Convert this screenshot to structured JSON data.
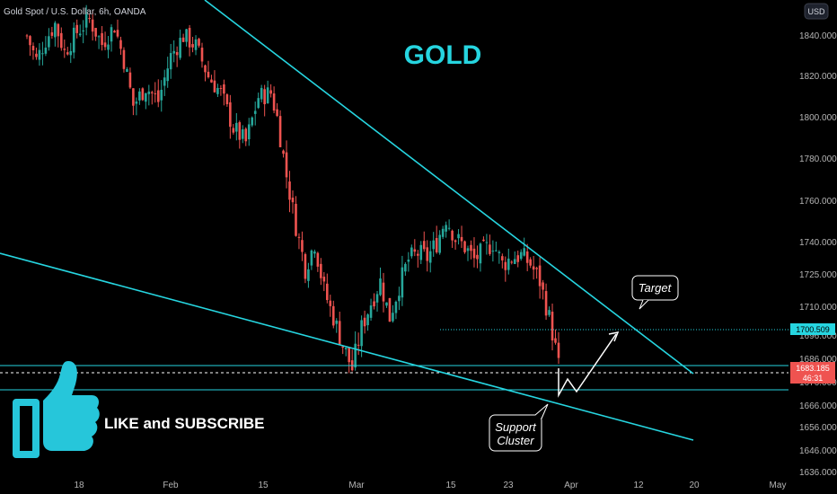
{
  "header": {
    "symbol_title": "Gold Spot / U.S. Dollar, 6h, OANDA",
    "currency_button": "USD"
  },
  "overlay": {
    "headline": "GOLD",
    "cta_text": "LIKE and SUBSCRIBE",
    "target_label": "Target",
    "support_label_line1": "Support",
    "support_label_line2": "Cluster"
  },
  "colors": {
    "background": "#000000",
    "up_candle": "#26a69a",
    "down_candle": "#ef5350",
    "trendline": "#26d5e0",
    "thumb": "#26c6da",
    "current_price_tag": "#ef5350",
    "target_price_tag": "#26d5e0"
  },
  "icons": {
    "thumb": "thumbs-up-icon"
  },
  "chart_data": {
    "type": "candlestick",
    "timeframe": "6h",
    "title": "Gold Spot / U.S. Dollar, 6h, OANDA",
    "x_ticks": [
      "18",
      "Feb",
      "15",
      "Mar",
      "15",
      "23",
      "Apr",
      "12",
      "20",
      "May"
    ],
    "y_ticks": [
      1840,
      1820,
      1800,
      1780,
      1760,
      1740,
      1725,
      1710,
      1696,
      1686,
      1676,
      1666,
      1656,
      1646,
      1636
    ],
    "y_tick_labels": [
      "1840.000",
      "1820.000",
      "1800.000",
      "1780.000",
      "1760.000",
      "1740.000",
      "1725.000",
      "1710.000",
      "1696.000",
      "1686.000",
      "1676.000",
      "1666.000",
      "1656.000",
      "1646.000",
      "1636.000"
    ],
    "ylim": [
      1632,
      1857
    ],
    "current_price": "1683.185",
    "countdown": "46:31",
    "target_price": "1700.509",
    "close_path": [
      [
        0,
        1840
      ],
      [
        3,
        1828
      ],
      [
        6,
        1838
      ],
      [
        9,
        1846
      ],
      [
        12,
        1832
      ],
      [
        16,
        1842
      ],
      [
        20,
        1848
      ],
      [
        24,
        1836
      ],
      [
        28,
        1845
      ],
      [
        31,
        1828
      ],
      [
        34,
        1806
      ],
      [
        38,
        1815
      ],
      [
        42,
        1808
      ],
      [
        46,
        1830
      ],
      [
        50,
        1840
      ],
      [
        54,
        1835
      ],
      [
        58,
        1820
      ],
      [
        62,
        1812
      ],
      [
        66,
        1795
      ],
      [
        70,
        1788
      ],
      [
        74,
        1810
      ],
      [
        78,
        1812
      ],
      [
        80,
        1800
      ],
      [
        83,
        1772
      ],
      [
        86,
        1748
      ],
      [
        89,
        1728
      ],
      [
        92,
        1740
      ],
      [
        95,
        1718
      ],
      [
        98,
        1705
      ],
      [
        101,
        1692
      ],
      [
        104,
        1682
      ],
      [
        107,
        1700
      ],
      [
        110,
        1712
      ],
      [
        113,
        1722
      ],
      [
        116,
        1705
      ],
      [
        119,
        1720
      ],
      [
        122,
        1732
      ],
      [
        125,
        1735
      ],
      [
        128,
        1733
      ],
      [
        131,
        1740
      ],
      [
        134,
        1752
      ],
      [
        137,
        1742
      ],
      [
        140,
        1738
      ],
      [
        143,
        1732
      ],
      [
        146,
        1736
      ],
      [
        149,
        1740
      ],
      [
        152,
        1730
      ],
      [
        155,
        1733
      ],
      [
        158,
        1734
      ],
      [
        161,
        1730
      ],
      [
        164,
        1722
      ],
      [
        167,
        1705
      ],
      [
        170,
        1683
      ]
    ],
    "support_levels": [
      1686,
      1679
    ],
    "target_level": 1700.509,
    "grid": false
  }
}
